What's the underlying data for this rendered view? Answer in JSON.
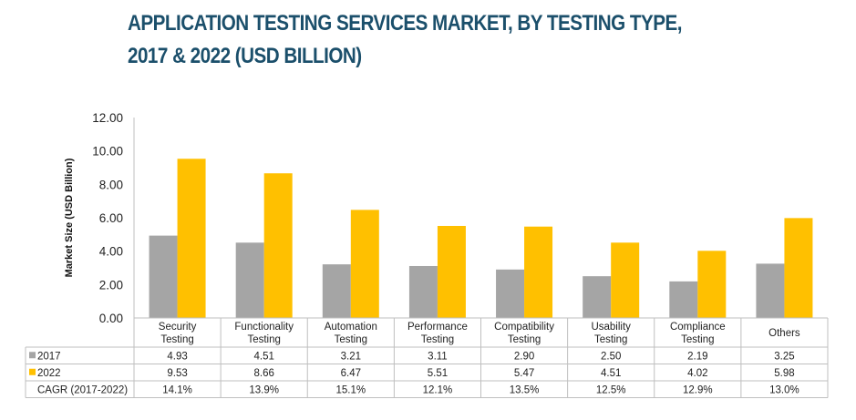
{
  "chart_data": {
    "type": "bar",
    "title_line1": "APPLICATION TESTING SERVICES MARKET, BY TESTING TYPE,",
    "title_line2": "2017 & 2022 (USD BILLION)",
    "xlabel": "",
    "ylabel": "Market Size (USD Billion)",
    "ylim": [
      0,
      12
    ],
    "yticks": [
      "0.00",
      "2.00",
      "4.00",
      "6.00",
      "8.00",
      "10.00",
      "12.00"
    ],
    "grid": false,
    "legend": "data-table",
    "categories": [
      [
        "Security",
        "Testing"
      ],
      [
        "Functionality",
        "Testing"
      ],
      [
        "Automation",
        "Testing"
      ],
      [
        "Performance",
        "Testing"
      ],
      [
        "Compatibility",
        "Testing"
      ],
      [
        "Usability",
        "Testing"
      ],
      [
        "Compliance",
        "Testing"
      ],
      [
        "Others"
      ]
    ],
    "series": [
      {
        "name": "2017",
        "color": "#a5a5a5",
        "values": [
          4.93,
          4.51,
          3.21,
          3.11,
          2.9,
          2.5,
          2.19,
          3.25
        ],
        "labels": [
          "4.93",
          "4.51",
          "3.21",
          "3.11",
          "2.90",
          "2.50",
          "2.19",
          "3.25"
        ]
      },
      {
        "name": "2022",
        "color": "#ffc000",
        "values": [
          9.53,
          8.66,
          6.47,
          5.51,
          5.47,
          4.51,
          4.02,
          5.98
        ],
        "labels": [
          "9.53",
          "8.66",
          "6.47",
          "5.51",
          "5.47",
          "4.51",
          "4.02",
          "5.98"
        ]
      }
    ],
    "table_rows": [
      {
        "label": "CAGR (2017-2022)",
        "values": [
          "14.1%",
          "13.9%",
          "15.1%",
          "12.1%",
          "13.5%",
          "12.5%",
          "12.9%",
          "13.0%"
        ]
      }
    ]
  }
}
